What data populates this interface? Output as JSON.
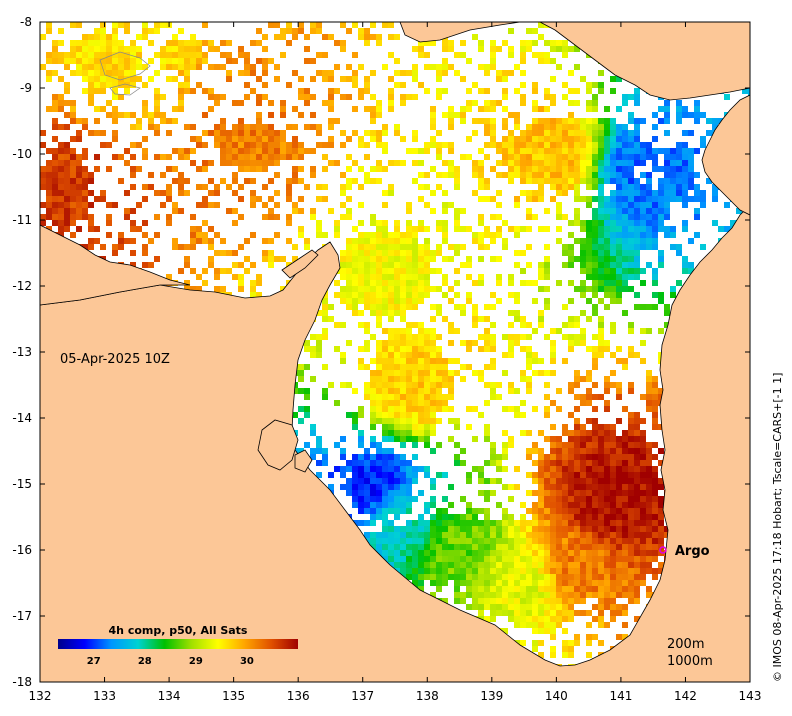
{
  "map": {
    "timestamp": "05-Apr-2025 10Z",
    "depth_legend": [
      "200m",
      "1000m"
    ],
    "credit": "© IMOS 08-Apr-2025 17:18 Hobart; Tscale=CARS+[-1 1]",
    "argo_label": "Argo",
    "argo_position": {
      "lon": 141.65,
      "lat": -16.0
    },
    "colors": {
      "land": "#fcc797",
      "ocean_nodata": "#ffffff",
      "argo_marker": "#e000e0"
    }
  },
  "axes": {
    "lon_range": [
      132,
      143
    ],
    "lat_range": [
      -18,
      -8
    ],
    "x_ticks": [
      "132",
      "133",
      "134",
      "135",
      "136",
      "137",
      "138",
      "139",
      "140",
      "141",
      "142",
      "143"
    ],
    "y_ticks": [
      "-8",
      "-9",
      "-10",
      "-11",
      "-12",
      "-13",
      "-14",
      "-15",
      "-16",
      "-17",
      "-18"
    ]
  },
  "colorbar": {
    "title": "4h comp, p50, All Sats",
    "range": [
      26.3,
      31.0
    ],
    "ticks": [
      "27",
      "28",
      "29",
      "30"
    ],
    "tick_values": [
      27,
      28,
      29,
      30
    ],
    "colormap": [
      "#00008b",
      "#0000ff",
      "#0096ff",
      "#00d2d2",
      "#00c000",
      "#a0e000",
      "#ffff00",
      "#ffa500",
      "#e05000",
      "#a00000"
    ]
  },
  "chart_data": {
    "type": "heatmap",
    "title": "",
    "xlabel": "",
    "ylabel": "",
    "x_unit": "deg E",
    "y_unit": "deg S",
    "xlim": [
      132,
      143
    ],
    "ylim": [
      -18,
      -8
    ],
    "value_range": [
      26.3,
      31.0
    ],
    "regions": [
      {
        "lon": 140.8,
        "lat": -15.3,
        "sst": 30.9
      },
      {
        "lon": 140.3,
        "lat": -16.2,
        "sst": 30.2
      },
      {
        "lon": 139.5,
        "lat": -16.5,
        "sst": 29.3
      },
      {
        "lon": 138.5,
        "lat": -16.0,
        "sst": 28.7
      },
      {
        "lon": 137.5,
        "lat": -15.5,
        "sst": 27.9
      },
      {
        "lon": 137.2,
        "lat": -15.1,
        "sst": 26.9
      },
      {
        "lon": 137.8,
        "lat": -13.5,
        "sst": 29.7
      },
      {
        "lon": 137.3,
        "lat": -11.5,
        "sst": 29.4
      },
      {
        "lon": 140.0,
        "lat": -10.0,
        "sst": 29.8
      },
      {
        "lon": 141.3,
        "lat": -10.2,
        "sst": 27.2
      },
      {
        "lon": 135.2,
        "lat": -9.9,
        "sst": 30.2
      },
      {
        "lon": 132.3,
        "lat": -10.5,
        "sst": 30.6
      },
      {
        "lon": 133.2,
        "lat": -8.5,
        "sst": 29.6
      }
    ]
  }
}
